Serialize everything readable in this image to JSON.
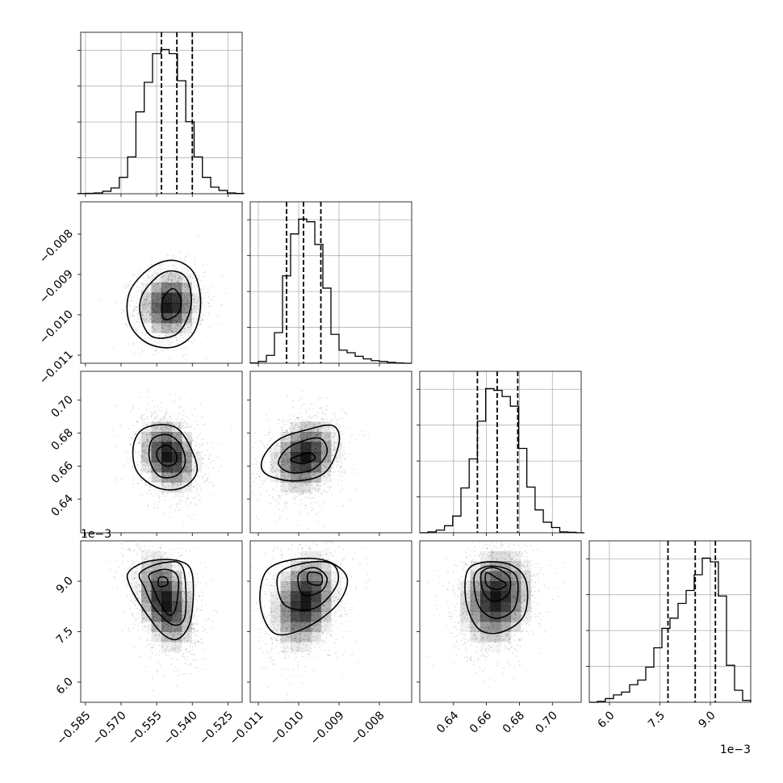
{
  "chart_data": {
    "type": "corner",
    "title": "",
    "parameters": [
      {
        "name": "",
        "range": [
          -0.587,
          -0.519
        ],
        "ticks": [
          -0.585,
          -0.57,
          -0.555,
          -0.54,
          -0.525
        ],
        "tick_labels": [
          "−0.585",
          "−0.570",
          "−0.555",
          "−0.540",
          "−0.525"
        ],
        "offset": "",
        "quantiles": [
          -0.553,
          -0.5465,
          -0.54
        ],
        "hist_x": [
          -0.5865,
          -0.583,
          -0.5795,
          -0.576,
          -0.5725,
          -0.569,
          -0.5655,
          -0.562,
          -0.5585,
          -0.555,
          -0.5515,
          -0.548,
          -0.5445,
          -0.541,
          -0.5375,
          -0.534,
          -0.5305,
          -0.527,
          -0.5235,
          -0.52
        ],
        "hist_y": [
          0.2,
          0.5,
          1,
          3,
          7,
          20,
          45,
          100,
          136,
          171,
          176,
          171,
          138,
          88,
          45,
          20,
          8,
          4,
          1,
          0.3
        ]
      },
      {
        "name": "",
        "range": [
          -0.0112,
          -0.0072
        ],
        "ticks": [
          -0.011,
          -0.01,
          -0.009,
          -0.008
        ],
        "tick_labels": [
          "−0.011",
          "−0.010",
          "−0.009",
          "−0.008"
        ],
        "offset": "",
        "quantiles": [
          -0.0103,
          -0.00988,
          -0.00945
        ],
        "hist_x": [
          -0.0111,
          -0.0109,
          -0.0107,
          -0.0105,
          -0.0103,
          -0.0101,
          -0.0099,
          -0.0097,
          -0.0095,
          -0.0093,
          -0.0091,
          -0.0089,
          -0.0087,
          -0.0085,
          -0.0083,
          -0.0081,
          -0.0079,
          -0.0077,
          -0.0075,
          -0.0073
        ],
        "hist_y": [
          0.3,
          2,
          9,
          35,
          100,
          148,
          165,
          162,
          136,
          86,
          33,
          15,
          12,
          8,
          5,
          3,
          2,
          1,
          0.3,
          0
        ]
      },
      {
        "name": "",
        "range": [
          0.6195,
          0.7175
        ],
        "ticks": [
          0.64,
          0.66,
          0.68,
          0.7
        ],
        "tick_labels": [
          "0.64",
          "0.66",
          "0.68",
          "0.70"
        ],
        "offset": "",
        "quantiles": [
          0.6545,
          0.6665,
          0.679
        ],
        "hist_x": [
          0.622,
          0.627,
          0.632,
          0.637,
          0.642,
          0.647,
          0.652,
          0.657,
          0.662,
          0.667,
          0.672,
          0.677,
          0.682,
          0.687,
          0.692,
          0.697,
          0.702,
          0.707,
          0.712,
          0.717
        ],
        "hist_y": [
          0,
          1,
          3,
          8,
          19,
          51,
          84,
          127,
          164,
          162,
          155,
          144,
          96,
          52,
          26,
          12,
          6,
          1,
          0.5,
          0
        ]
      },
      {
        "name": "",
        "range": [
          5.4,
          10.2
        ],
        "ticks": [
          6.0,
          7.5,
          9.0
        ],
        "tick_labels": [
          "6.0",
          "7.5",
          "9.0"
        ],
        "offset": "1e−3",
        "quantiles": [
          7.74,
          8.55,
          9.15
        ],
        "hist_x": [
          5.52,
          5.76,
          6.0,
          6.24,
          6.48,
          6.72,
          6.96,
          7.2,
          7.44,
          7.68,
          7.92,
          8.16,
          8.4,
          8.64,
          8.88,
          9.12,
          9.36,
          9.6,
          9.84,
          10.08
        ],
        "hist_y": [
          0,
          1,
          4,
          8,
          11,
          19,
          24,
          38,
          59,
          80,
          91,
          107,
          121,
          138,
          156,
          152,
          115,
          40,
          13,
          2
        ]
      }
    ],
    "pairs": [
      {
        "row": 1,
        "col": 0,
        "center": [
          -0.5495,
          -0.00975
        ],
        "sigma": [
          0.0064,
          0.00042
        ],
        "rho": 0.05,
        "contours": [
          [
            [
              -0.5525,
              -0.00963
            ],
            [
              -0.5482,
              -0.00935
            ],
            [
              -0.5448,
              -0.00962
            ],
            [
              -0.5462,
              -0.00998
            ],
            [
              -0.552,
              -0.0101
            ]
          ],
          [
            [
              -0.561,
              -0.0095
            ],
            [
              -0.552,
              -0.00895
            ],
            [
              -0.543,
              -0.00905
            ],
            [
              -0.5405,
              -0.00975
            ],
            [
              -0.546,
              -0.01045
            ],
            [
              -0.5565,
              -0.01055
            ],
            [
              -0.5615,
              -0.0101
            ]
          ],
          [
            [
              -0.5665,
              -0.00945
            ],
            [
              -0.558,
              -0.00885
            ],
            [
              -0.548,
              -0.00865
            ],
            [
              -0.5395,
              -0.00895
            ],
            [
              -0.5365,
              -0.0097
            ],
            [
              -0.5395,
              -0.01045
            ],
            [
              -0.548,
              -0.0108
            ],
            [
              -0.559,
              -0.0107
            ],
            [
              -0.5665,
              -0.0102
            ]
          ]
        ]
      },
      {
        "row": 2,
        "col": 0,
        "center": [
          -0.55,
          0.6665
        ],
        "sigma": [
          0.0064,
          0.0115
        ],
        "rho": -0.22,
        "contours": [
          [
            [
              -0.5545,
              0.664
            ],
            [
              -0.5545,
              0.67
            ],
            [
              -0.5505,
              0.6725
            ],
            [
              -0.547,
              0.668
            ],
            [
              -0.547,
              0.662
            ],
            [
              -0.551,
              0.66
            ]
          ],
          [
            [
              -0.558,
              0.664
            ],
            [
              -0.557,
              0.676
            ],
            [
              -0.5505,
              0.679
            ],
            [
              -0.545,
              0.673
            ],
            [
              -0.543,
              0.662
            ],
            [
              -0.547,
              0.654
            ],
            [
              -0.554,
              0.654
            ]
          ],
          [
            [
              -0.565,
              0.67
            ],
            [
              -0.562,
              0.681
            ],
            [
              -0.5545,
              0.685
            ],
            [
              -0.5465,
              0.683
            ],
            [
              -0.541,
              0.672
            ],
            [
              -0.538,
              0.657
            ],
            [
              -0.544,
              0.647
            ],
            [
              -0.554,
              0.6465
            ],
            [
              -0.563,
              0.656
            ]
          ]
        ]
      },
      {
        "row": 2,
        "col": 1,
        "center": [
          -0.00985,
          0.666
        ],
        "sigma": [
          0.00042,
          0.0115
        ],
        "rho": 0.2,
        "contours": [
          [
            [
              -0.0102,
              0.664
            ],
            [
              -0.00975,
              0.668
            ],
            [
              -0.0096,
              0.6645
            ],
            [
              -0.0099,
              0.6615
            ]
          ],
          [
            [
              -0.0105,
              0.662
            ],
            [
              -0.0102,
              0.672
            ],
            [
              -0.0095,
              0.677
            ],
            [
              -0.0093,
              0.668
            ],
            [
              -0.00965,
              0.658
            ],
            [
              -0.0102,
              0.656
            ]
          ],
          [
            [
              -0.0109,
              0.664
            ],
            [
              -0.0105,
              0.676
            ],
            [
              -0.0098,
              0.682
            ],
            [
              -0.00915,
              0.6845
            ],
            [
              -0.009,
              0.674
            ],
            [
              -0.00935,
              0.656
            ],
            [
              -0.0101,
              0.651
            ],
            [
              -0.0108,
              0.655
            ]
          ]
        ]
      },
      {
        "row": 3,
        "col": 0,
        "center": [
          -0.5515,
          8.4
        ],
        "sigma": [
          0.0064,
          0.75
        ],
        "rho": -0.35,
        "contours": [
          [
            [
              -0.554,
              9.1
            ],
            [
              -0.551,
              9.1
            ],
            [
              -0.5505,
              8.9
            ],
            [
              -0.554,
              8.85
            ]
          ],
          [
            [
              -0.558,
              9.2
            ],
            [
              -0.551,
              9.35
            ],
            [
              -0.546,
              9.1
            ],
            [
              -0.547,
              8.2
            ],
            [
              -0.55,
              8.0
            ],
            [
              -0.554,
              8.4
            ],
            [
              -0.557,
              8.9
            ]
          ],
          [
            [
              -0.562,
              9.25
            ],
            [
              -0.552,
              9.55
            ],
            [
              -0.544,
              9.4
            ],
            [
              -0.543,
              8.0
            ],
            [
              -0.548,
              7.7
            ],
            [
              -0.556,
              8.2
            ],
            [
              -0.56,
              8.8
            ]
          ],
          [
            [
              -0.5665,
              9.3
            ],
            [
              -0.558,
              9.6
            ],
            [
              -0.5455,
              9.6
            ],
            [
              -0.54,
              9.2
            ],
            [
              -0.5405,
              7.9
            ],
            [
              -0.5455,
              7.3
            ],
            [
              -0.552,
              7.4
            ],
            [
              -0.56,
              8.1
            ],
            [
              -0.5665,
              8.9
            ]
          ]
        ]
      },
      {
        "row": 3,
        "col": 1,
        "center": [
          -0.00985,
          8.4
        ],
        "sigma": [
          0.00042,
          0.75
        ],
        "rho": 0.25,
        "contours": [
          [
            [
              -0.00975,
              9.25
            ],
            [
              -0.00945,
              9.2
            ],
            [
              -0.00945,
              8.9
            ],
            [
              -0.00975,
              8.95
            ]
          ],
          [
            [
              -0.01,
              9.2
            ],
            [
              -0.0096,
              9.4
            ],
            [
              -0.0093,
              9.1
            ],
            [
              -0.00945,
              8.7
            ],
            [
              -0.0099,
              8.6
            ]
          ],
          [
            [
              -0.0105,
              9.2
            ],
            [
              -0.0098,
              9.55
            ],
            [
              -0.00915,
              9.5
            ],
            [
              -0.00905,
              8.9
            ],
            [
              -0.0096,
              8.2
            ],
            [
              -0.01035,
              8.3
            ]
          ],
          [
            [
              -0.0108,
              9.3
            ],
            [
              -0.0101,
              9.65
            ],
            [
              -0.0093,
              9.6
            ],
            [
              -0.0088,
              9.1
            ],
            [
              -0.00905,
              8.3
            ],
            [
              -0.00985,
              7.6
            ],
            [
              -0.0106,
              7.45
            ],
            [
              -0.01095,
              8.3
            ]
          ]
        ]
      },
      {
        "row": 3,
        "col": 2,
        "center": [
          0.666,
          8.5
        ],
        "sigma": [
          0.0115,
          0.75
        ],
        "rho": 0.15,
        "contours": [
          [
            [
              0.66,
              9.25
            ],
            [
              0.666,
              9.1
            ],
            [
              0.672,
              8.9
            ],
            [
              0.666,
              8.75
            ],
            [
              0.66,
              8.9
            ]
          ],
          [
            [
              0.657,
              9.25
            ],
            [
              0.665,
              9.4
            ],
            [
              0.674,
              9.1
            ],
            [
              0.673,
              8.6
            ],
            [
              0.664,
              8.4
            ],
            [
              0.658,
              8.7
            ]
          ],
          [
            [
              0.653,
              9.2
            ],
            [
              0.664,
              9.45
            ],
            [
              0.678,
              9.15
            ],
            [
              0.677,
              8.2
            ],
            [
              0.665,
              7.9
            ],
            [
              0.655,
              8.3
            ]
          ],
          [
            [
              0.648,
              9.25
            ],
            [
              0.657,
              9.55
            ],
            [
              0.674,
              9.5
            ],
            [
              0.684,
              9.0
            ],
            [
              0.683,
              8.0
            ],
            [
              0.67,
              7.5
            ],
            [
              0.656,
              7.55
            ],
            [
              0.648,
              8.3
            ]
          ]
        ]
      }
    ]
  }
}
